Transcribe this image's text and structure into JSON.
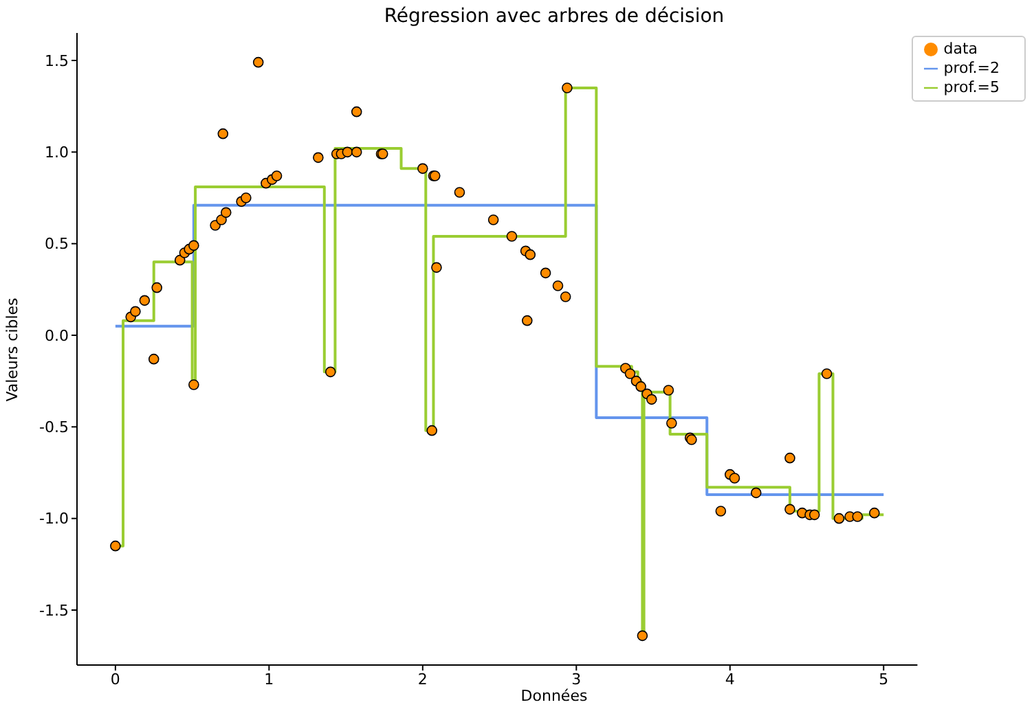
{
  "chart_data": {
    "type": "scatter",
    "title": "Régression avec arbres de décision",
    "xlabel": "Données",
    "ylabel": "Valeurs cibles",
    "xlim": [
      -0.25,
      5.22
    ],
    "xticks": [
      0,
      1,
      2,
      3,
      4,
      5
    ],
    "ylim": [
      -1.8,
      1.65
    ],
    "yticks": [
      -1.5,
      {
        "value": -1,
        "label": "-1.0"
      },
      -0.5,
      {
        "value": 0,
        "label": "0.0"
      },
      0.5,
      {
        "value": 1,
        "label": "1.0"
      },
      1.5
    ],
    "grid": false,
    "legend": "top right",
    "series": [
      {
        "name": "data",
        "color": "#ff8c00",
        "marker": "circle",
        "x": [
          0.0,
          0.1,
          0.13,
          0.19,
          0.25,
          0.27,
          0.42,
          0.45,
          0.48,
          0.51,
          0.51,
          0.65,
          0.69,
          0.7,
          0.72,
          0.82,
          0.85,
          0.93,
          0.98,
          1.02,
          1.05,
          1.32,
          1.4,
          1.44,
          1.47,
          1.51,
          1.57,
          1.57,
          1.73,
          1.74,
          2.0,
          2.07,
          2.08,
          2.06,
          2.09,
          2.24,
          2.46,
          2.58,
          2.67,
          2.7,
          2.68,
          2.8,
          2.88,
          2.93,
          2.94,
          3.32,
          3.35,
          3.39,
          3.42,
          3.43,
          3.46,
          3.49,
          3.6,
          3.62,
          3.74,
          3.75,
          3.94,
          4.0,
          4.03,
          4.17,
          4.39,
          4.39,
          4.47,
          4.52,
          4.55,
          4.63,
          4.71,
          4.78,
          4.83,
          4.94
        ],
        "values": [
          -1.15,
          0.1,
          0.13,
          0.19,
          -0.13,
          0.26,
          0.41,
          0.45,
          0.47,
          0.49,
          -0.27,
          0.6,
          0.63,
          1.1,
          0.67,
          0.73,
          0.75,
          1.49,
          0.83,
          0.85,
          0.87,
          0.97,
          -0.2,
          0.99,
          0.99,
          1.0,
          1.0,
          1.22,
          0.99,
          0.99,
          0.91,
          0.87,
          0.87,
          -0.52,
          0.37,
          0.78,
          0.63,
          0.54,
          0.46,
          0.44,
          0.08,
          0.34,
          0.27,
          0.21,
          1.35,
          -0.18,
          -0.21,
          -0.25,
          -0.28,
          -1.64,
          -0.32,
          -0.35,
          -0.3,
          -0.48,
          -0.56,
          -0.57,
          -0.96,
          -0.76,
          -0.78,
          -0.86,
          -0.67,
          -0.95,
          -0.97,
          -0.98,
          -0.98,
          -0.21,
          -1.0,
          -0.99,
          -0.99,
          -0.97
        ]
      },
      {
        "name": "prof.=2",
        "type": "step",
        "color": "#6495ed",
        "line_style": "solid",
        "x": [
          0,
          0.51,
          3.13,
          3.85,
          5.0
        ],
        "values": [
          0.05,
          0.71,
          -0.45,
          -0.87,
          -0.87
        ]
      },
      {
        "name": "prof.=5",
        "type": "step",
        "color": "#9acd32",
        "line_style": "solid",
        "x": [
          0,
          0.05,
          0.25,
          0.5,
          0.52,
          1.36,
          1.43,
          1.86,
          2.02,
          2.07,
          2.93,
          3.13,
          3.36,
          3.4,
          3.42,
          3.43,
          3.44,
          3.61,
          3.85,
          4.39,
          4.58,
          4.67,
          4.86,
          5.0
        ],
        "values": [
          -1.15,
          0.08,
          0.4,
          -0.27,
          0.81,
          -0.2,
          1.02,
          0.91,
          -0.52,
          0.54,
          1.35,
          -0.17,
          -0.2,
          -0.25,
          -0.28,
          -1.64,
          -0.31,
          -0.54,
          -0.83,
          -0.96,
          -0.21,
          -1.0,
          -0.98,
          -0.98
        ]
      }
    ]
  }
}
